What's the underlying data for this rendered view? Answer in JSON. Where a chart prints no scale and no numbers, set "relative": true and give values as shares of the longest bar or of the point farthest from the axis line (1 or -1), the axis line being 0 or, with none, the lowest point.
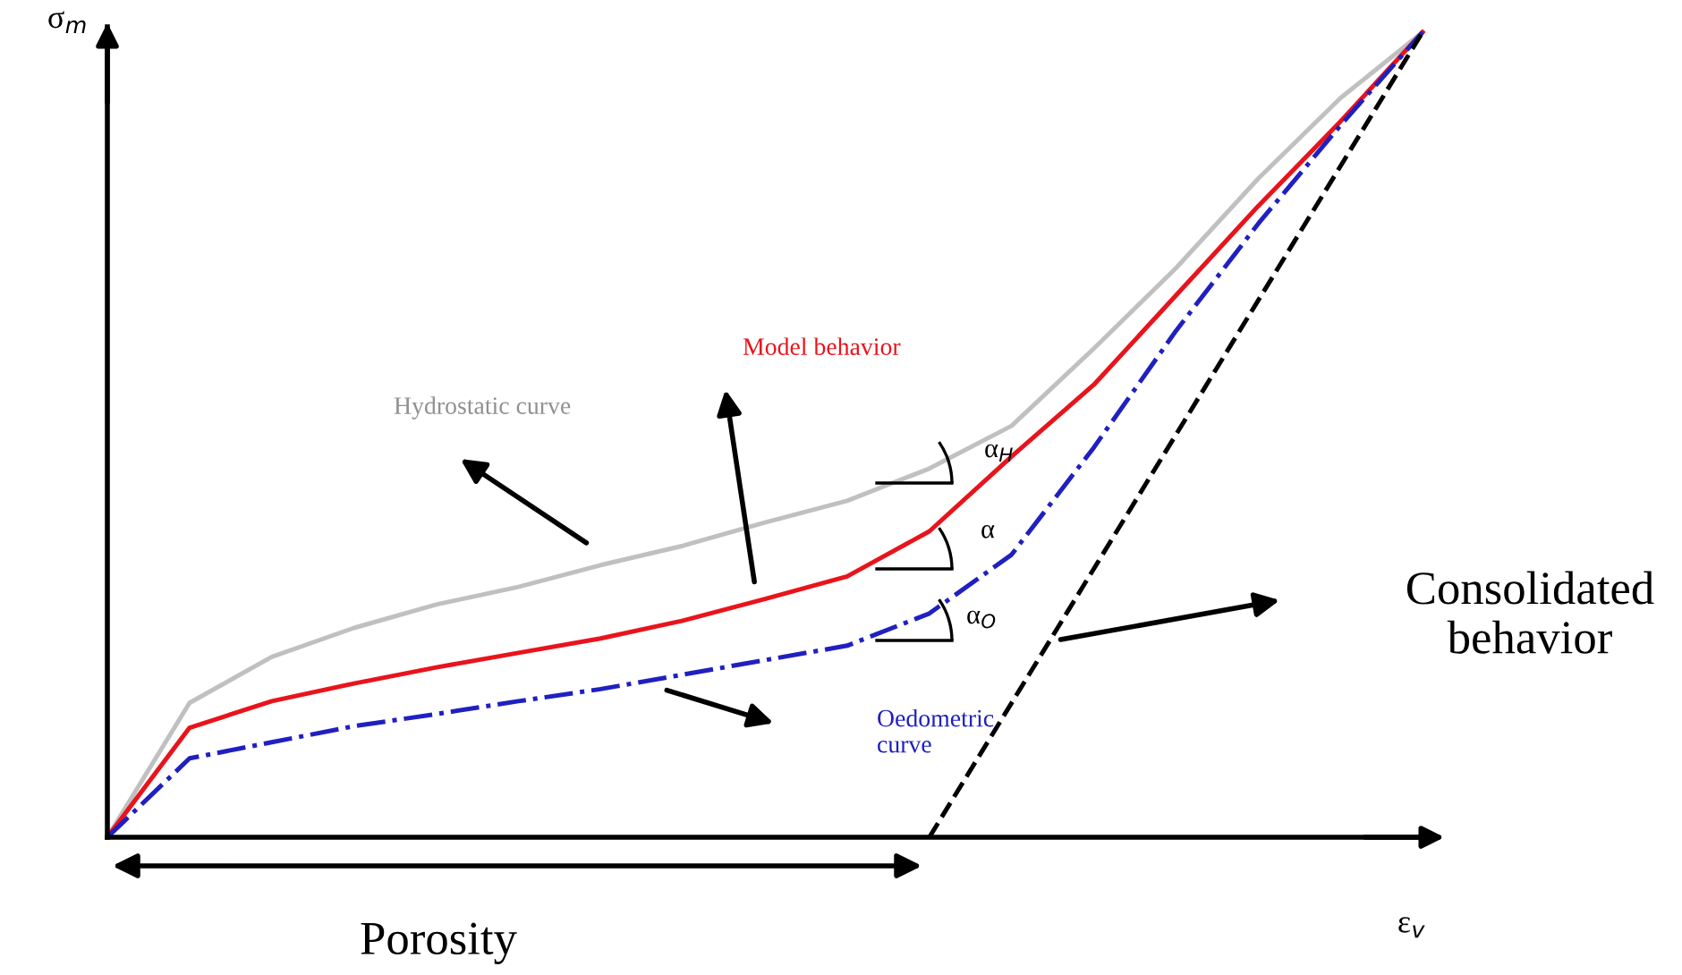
{
  "chart_data": {
    "type": "line",
    "relative": true,
    "xlabel": "ε$_{v}$",
    "ylabel": "σ$_{m}$",
    "categories": [
      null,
      null,
      null,
      null,
      null,
      null,
      null,
      null,
      null,
      null,
      null,
      null,
      null,
      null,
      null,
      null,
      null
    ],
    "series": [
      {
        "color": "#c0c0c0",
        "line_style": "solid",
        "values": [
          0,
          0.167,
          0.224,
          0.26,
          0.289,
          0.311,
          0.338,
          0.362,
          0.391,
          0.418,
          0.458,
          0.511,
          0.607,
          0.707,
          0.818,
          0.918,
          1
        ]
      },
      {
        "color": "#e8141c",
        "line_style": "solid",
        "values": [
          0,
          0.136,
          0.169,
          0.191,
          0.211,
          0.229,
          0.247,
          0.269,
          0.296,
          0.324,
          0.38,
          0.473,
          0.562,
          0.673,
          0.784,
          0.889,
          1
        ]
      },
      {
        "color": "#2020c0",
        "line_style": "dashdot",
        "values": [
          0,
          0.098,
          0.118,
          0.138,
          0.153,
          0.169,
          0.184,
          0.202,
          0.22,
          0.238,
          0.278,
          0.351,
          0.484,
          0.629,
          0.762,
          0.884,
          1
        ]
      },
      {
        "color": "#000000",
        "line_style": "dashed",
        "values": [
          null,
          null,
          null,
          null,
          null,
          null,
          null,
          null,
          null,
          null,
          0,
          null,
          null,
          null,
          null,
          null,
          1
        ]
      }
    ],
    "annotations": [
      "Hydrostatic curve",
      "Model behavior",
      "Oedometric\ncurve",
      "Consolidated\nbehavior",
      "Porosity",
      "α$_{H}$",
      "α",
      "α$_{O}$"
    ],
    "marker": "none"
  }
}
